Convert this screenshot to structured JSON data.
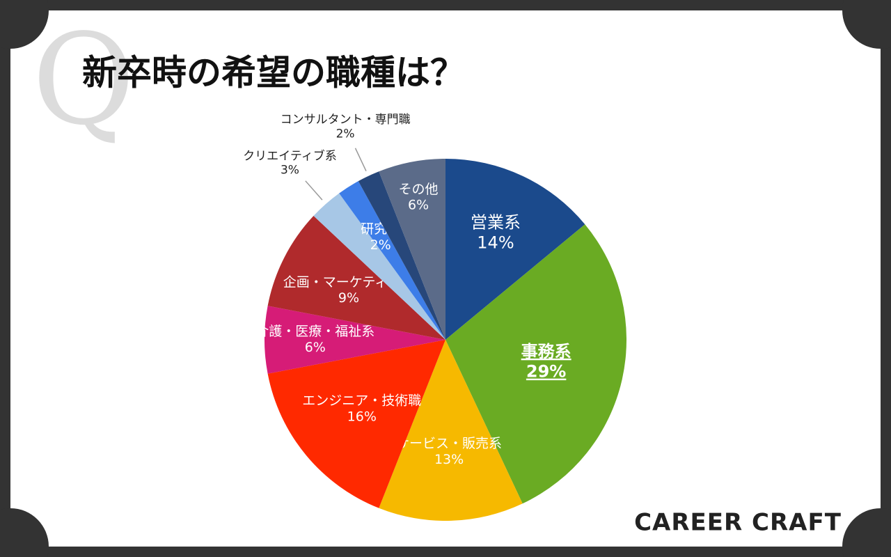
{
  "decoration": "Q",
  "brand": "CAREER CRAFT",
  "chart_data": {
    "type": "pie",
    "title": "新卒時の希望の職種は？",
    "categories": [
      "営業系",
      "事務系",
      "サービス・販売系",
      "エンジニア・技術職",
      "介護・医療・福祉系",
      "企画・マーケティング",
      "クリエイティブ系",
      "研究職",
      "コンサルタント・専門職",
      "その他"
    ],
    "values": [
      14,
      29,
      13,
      16,
      6,
      9,
      3,
      2,
      2,
      6
    ],
    "value_labels": [
      "14%",
      "29%",
      "13%",
      "16%",
      "6%",
      "9%",
      "3%",
      "2%",
      "2%",
      "6%"
    ],
    "colors": [
      "#1b4a8c",
      "#6aab23",
      "#f6b900",
      "#ff2900",
      "#d61c77",
      "#b02a2c",
      "#a7c7e6",
      "#3d7de8",
      "#27477a",
      "#5b6b89"
    ]
  }
}
